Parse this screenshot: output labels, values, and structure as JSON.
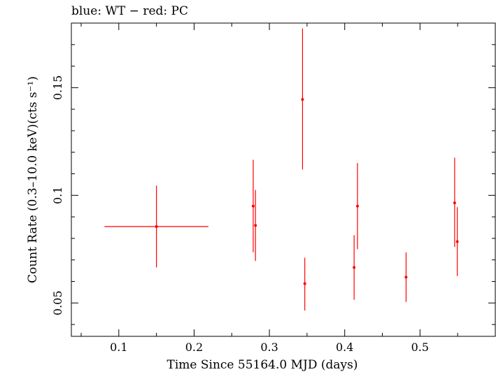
{
  "chart_data": {
    "type": "scatter",
    "title": "blue: WT − red: PC",
    "xlabel": "Time Since 55164.0 MJD (days)",
    "ylabel": "Count Rate (0.3–10.0 keV)(cts s⁻¹)",
    "xlim": [
      0.037,
      0.6
    ],
    "ylim": [
      0.0345,
      0.18
    ],
    "x_ticks": [
      {
        "value": 0.1,
        "label": "0.1"
      },
      {
        "value": 0.2,
        "label": "0.2"
      },
      {
        "value": 0.3,
        "label": "0.3"
      },
      {
        "value": 0.4,
        "label": "0.4"
      },
      {
        "value": 0.5,
        "label": "0.5"
      }
    ],
    "y_ticks": [
      {
        "value": 0.05,
        "label": "0.05"
      },
      {
        "value": 0.1,
        "label": "0.1"
      },
      {
        "value": 0.15,
        "label": "0.15"
      }
    ],
    "color": "#ff0000",
    "series": [
      {
        "points": [
          {
            "x": 0.15,
            "x_lo": 0.081,
            "x_hi": 0.219,
            "y": 0.0855,
            "y_lo": 0.0665,
            "y_hi": 0.1045
          },
          {
            "x": 0.2785,
            "x_lo": 0.2785,
            "x_hi": 0.2785,
            "y": 0.095,
            "y_lo": 0.0735,
            "y_hi": 0.1165
          },
          {
            "x": 0.2815,
            "x_lo": 0.2815,
            "x_hi": 0.2815,
            "y": 0.086,
            "y_lo": 0.0695,
            "y_hi": 0.1025
          },
          {
            "x": 0.344,
            "x_lo": 0.344,
            "x_hi": 0.344,
            "y": 0.1445,
            "y_lo": 0.112,
            "y_hi": 0.1775
          },
          {
            "x": 0.347,
            "x_lo": 0.347,
            "x_hi": 0.347,
            "y": 0.059,
            "y_lo": 0.0465,
            "y_hi": 0.071
          },
          {
            "x": 0.4125,
            "x_lo": 0.4125,
            "x_hi": 0.4125,
            "y": 0.0665,
            "y_lo": 0.0515,
            "y_hi": 0.0815
          },
          {
            "x": 0.417,
            "x_lo": 0.417,
            "x_hi": 0.417,
            "y": 0.095,
            "y_lo": 0.075,
            "y_hi": 0.115
          },
          {
            "x": 0.4815,
            "x_lo": 0.4815,
            "x_hi": 0.4815,
            "y": 0.062,
            "y_lo": 0.0505,
            "y_hi": 0.0735
          },
          {
            "x": 0.546,
            "x_lo": 0.546,
            "x_hi": 0.546,
            "y": 0.0965,
            "y_lo": 0.076,
            "y_hi": 0.1175
          },
          {
            "x": 0.5495,
            "x_lo": 0.5495,
            "x_hi": 0.5495,
            "y": 0.0785,
            "y_lo": 0.0625,
            "y_hi": 0.0945
          }
        ]
      }
    ]
  }
}
